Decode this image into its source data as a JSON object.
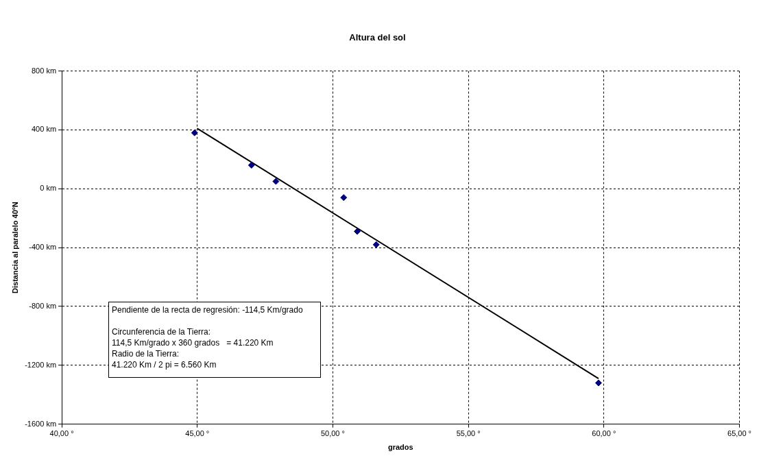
{
  "chart_data": {
    "type": "scatter",
    "title": "Altura del sol",
    "xlabel": "grados",
    "ylabel": "Distancia al paralelo 40ºN",
    "series": [
      {
        "color": "#000080",
        "marker": "diamond",
        "x": [
          44.9,
          47.0,
          47.9,
          50.4,
          50.9,
          51.6,
          59.8
        ],
        "values": [
          380,
          160,
          50,
          -60,
          -290,
          -380,
          -1320
        ]
      },
      {
        "type": "line",
        "color": "#000000",
        "marker": "none",
        "x": [
          45,
          59.8
        ],
        "values": [
          410,
          -1290
        ]
      }
    ],
    "xlim": [
      40,
      65
    ],
    "xticks": [
      {
        "value": 40,
        "label": "40,00 °"
      },
      {
        "value": 45,
        "label": "45,00 °"
      },
      {
        "value": 50,
        "label": "50,00 °"
      },
      {
        "value": 55,
        "label": "55,00 °"
      },
      {
        "value": 60,
        "label": "60,00 °"
      },
      {
        "value": 65,
        "label": "65,00 °"
      }
    ],
    "ylim": [
      -1600,
      800
    ],
    "yticks": [
      {
        "value": -1600,
        "label": "-1600 km"
      },
      {
        "value": -1200,
        "label": "-1200 km"
      },
      {
        "value": -800,
        "label": "-800 km"
      },
      {
        "value": -400,
        "label": "-400 km"
      },
      {
        "value": 0,
        "label": "0 km"
      },
      {
        "value": 400,
        "label": "400 km"
      },
      {
        "value": 800,
        "label": "800 km"
      }
    ],
    "grid": true,
    "legend": false,
    "annotations": [
      "Pendiente de la recta de regresión: -114,5 Km/grado",
      "Circunferencia de la Tierra:",
      "114,5 Km/grado x 360 grados   = 41.220 Km",
      "Radio de la Tierra:",
      "41.220 Km / 2 pi = 6.560 Km"
    ]
  }
}
